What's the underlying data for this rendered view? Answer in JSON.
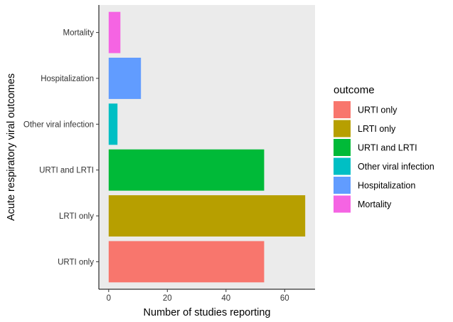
{
  "chart_data": {
    "type": "bar",
    "orientation": "horizontal",
    "categories": [
      "URTI only",
      "LRTI only",
      "URTI and LRTI",
      "Other viral infection",
      "Hospitalization",
      "Mortality"
    ],
    "values": [
      53,
      67,
      53,
      3,
      11,
      4
    ],
    "colors": [
      "#F8766D",
      "#B79F00",
      "#00BA38",
      "#00BFC4",
      "#619CFF",
      "#F564E3"
    ],
    "xlabel": "Number of studies reporting",
    "ylabel": "Acute respiratory viral outcomes",
    "xlim": [
      -3.35,
      70.35
    ],
    "xticks": [
      0,
      20,
      40,
      60
    ],
    "legend": {
      "title": "outcome",
      "position": "right",
      "entries": [
        "URTI only",
        "LRTI only",
        "URTI and LRTI",
        "Other viral infection",
        "Hospitalization",
        "Mortality"
      ]
    },
    "panel_background": "#EBEBEB",
    "grid": false
  }
}
